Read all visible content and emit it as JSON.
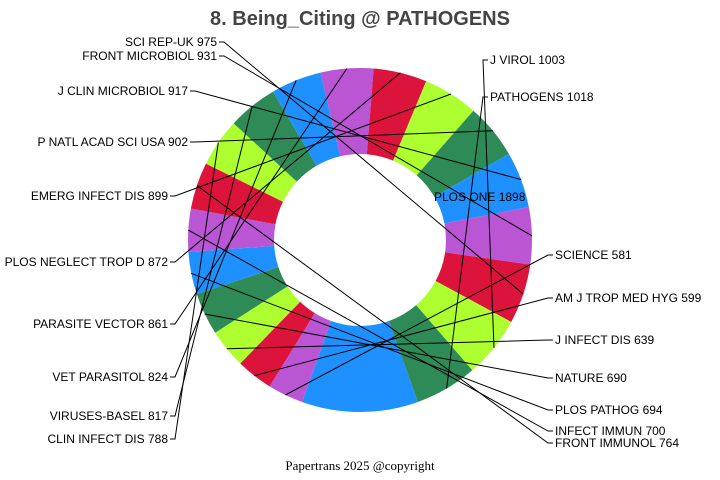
{
  "chart_data": {
    "type": "pie",
    "style": "donut",
    "title": "8. Being_Citing @ PATHOGENS",
    "footer": "Papertrans 2025 @copyright",
    "slices": [
      {
        "label": "PLOS ONE",
        "value": 1898,
        "color": "#1E90FF"
      },
      {
        "label": "SCIENCE",
        "value": 581,
        "color": "#BA55D3"
      },
      {
        "label": "AM J TROP MED HYG",
        "value": 599,
        "color": "#DC143C"
      },
      {
        "label": "J INFECT DIS",
        "value": 639,
        "color": "#ADFF2F"
      },
      {
        "label": "NATURE",
        "value": 690,
        "color": "#2E8B57"
      },
      {
        "label": "PLOS PATHOG",
        "value": 694,
        "color": "#1E90FF"
      },
      {
        "label": "INFECT IMMUN",
        "value": 700,
        "color": "#BA55D3"
      },
      {
        "label": "FRONT IMMUNOL",
        "value": 764,
        "color": "#DC143C"
      },
      {
        "label": "CLIN INFECT DIS",
        "value": 788,
        "color": "#ADFF2F"
      },
      {
        "label": "VIRUSES-BASEL",
        "value": 817,
        "color": "#2E8B57"
      },
      {
        "label": "VET PARASITOL",
        "value": 824,
        "color": "#1E90FF"
      },
      {
        "label": "PARASITE VECTOR",
        "value": 861,
        "color": "#BA55D3"
      },
      {
        "label": "PLOS NEGLECT TROP D",
        "value": 872,
        "color": "#DC143C"
      },
      {
        "label": "EMERG INFECT DIS",
        "value": 899,
        "color": "#ADFF2F"
      },
      {
        "label": "P NATL ACAD SCI USA",
        "value": 902,
        "color": "#2E8B57"
      },
      {
        "label": "J CLIN MICROBIOL",
        "value": 917,
        "color": "#1E90FF"
      },
      {
        "label": "FRONT MICROBIOL",
        "value": 931,
        "color": "#BA55D3"
      },
      {
        "label": "SCI REP-UK",
        "value": 975,
        "color": "#DC143C"
      },
      {
        "label": "J VIROL",
        "value": 1003,
        "color": "#ADFF2F"
      },
      {
        "label": "PATHOGENS",
        "value": 1018,
        "color": "#2E8B57"
      }
    ]
  }
}
